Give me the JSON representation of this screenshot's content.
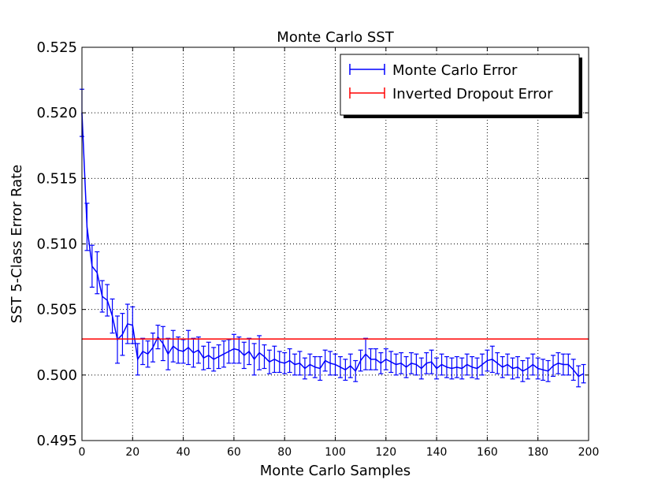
{
  "chart_data": {
    "type": "line",
    "title": "Monte Carlo SST",
    "xlabel": "Monte Carlo Samples",
    "ylabel": "SST 5-Class Error Rate",
    "xlim": [
      0,
      200
    ],
    "ylim": [
      0.495,
      0.525
    ],
    "grid": true,
    "legend_position": "top-right",
    "x_ticks": [
      0,
      20,
      40,
      60,
      80,
      100,
      120,
      140,
      160,
      180,
      200
    ],
    "x_tick_labels": [
      "0",
      "20",
      "40",
      "60",
      "80",
      "100",
      "120",
      "140",
      "160",
      "180",
      "200"
    ],
    "y_ticks": [
      0.495,
      0.5,
      0.505,
      0.51,
      0.515,
      0.52,
      0.525
    ],
    "y_tick_labels": [
      "0.495",
      "0.500",
      "0.505",
      "0.510",
      "0.515",
      "0.520",
      "0.525"
    ],
    "series": [
      {
        "name": "Monte Carlo Error",
        "color": "#0000ff",
        "errorbars": true,
        "x": [
          0,
          2,
          4,
          6,
          8,
          10,
          12,
          14,
          16,
          18,
          20,
          22,
          24,
          26,
          28,
          30,
          32,
          34,
          36,
          38,
          40,
          42,
          44,
          46,
          48,
          50,
          52,
          54,
          56,
          58,
          60,
          62,
          64,
          66,
          68,
          70,
          72,
          74,
          76,
          78,
          80,
          82,
          84,
          86,
          88,
          90,
          92,
          94,
          96,
          98,
          100,
          102,
          104,
          106,
          108,
          110,
          112,
          114,
          116,
          118,
          120,
          122,
          124,
          126,
          128,
          130,
          132,
          134,
          136,
          138,
          140,
          142,
          144,
          146,
          148,
          150,
          152,
          154,
          156,
          158,
          160,
          162,
          164,
          166,
          168,
          170,
          172,
          174,
          176,
          178,
          180,
          182,
          184,
          186,
          188,
          190,
          192,
          194,
          196,
          198
        ],
        "values": [
          0.52,
          0.5113,
          0.5083,
          0.5078,
          0.506,
          0.5057,
          0.5045,
          0.5027,
          0.5031,
          0.5039,
          0.5038,
          0.5012,
          0.5018,
          0.5016,
          0.5021,
          0.5029,
          0.5024,
          0.5016,
          0.5022,
          0.5019,
          0.5018,
          0.5021,
          0.5017,
          0.5019,
          0.5013,
          0.5015,
          0.5012,
          0.5014,
          0.5016,
          0.5018,
          0.502,
          0.5019,
          0.5015,
          0.5018,
          0.5012,
          0.5017,
          0.5014,
          0.501,
          0.5012,
          0.501,
          0.5009,
          0.5011,
          0.5008,
          0.5009,
          0.5005,
          0.5008,
          0.5006,
          0.5005,
          0.5011,
          0.5009,
          0.5008,
          0.5006,
          0.5004,
          0.5007,
          0.5003,
          0.5011,
          0.5016,
          0.5012,
          0.5012,
          0.5009,
          0.5012,
          0.501,
          0.5008,
          0.5009,
          0.5006,
          0.5009,
          0.5008,
          0.5005,
          0.5009,
          0.501,
          0.5005,
          0.5008,
          0.5006,
          0.5005,
          0.5006,
          0.5005,
          0.5008,
          0.5006,
          0.5005,
          0.5008,
          0.5011,
          0.5012,
          0.5009,
          0.5006,
          0.5008,
          0.5005,
          0.5006,
          0.5003,
          0.5005,
          0.5008,
          0.5005,
          0.5004,
          0.5003,
          0.5007,
          0.5009,
          0.5008,
          0.5008,
          0.5004,
          0.4999,
          0.5001
        ],
        "errors": [
          0.0018,
          0.0018,
          0.0016,
          0.0016,
          0.0012,
          0.0012,
          0.0013,
          0.0018,
          0.0016,
          0.0015,
          0.0014,
          0.0012,
          0.001,
          0.001,
          0.0011,
          0.0009,
          0.0013,
          0.0012,
          0.0012,
          0.001,
          0.0009,
          0.0013,
          0.0011,
          0.001,
          0.0009,
          0.001,
          0.0009,
          0.0009,
          0.001,
          0.0009,
          0.0011,
          0.001,
          0.001,
          0.001,
          0.0012,
          0.0013,
          0.0009,
          0.0009,
          0.001,
          0.0008,
          0.0008,
          0.0009,
          0.0008,
          0.0009,
          0.0008,
          0.0008,
          0.0008,
          0.0009,
          0.0008,
          0.0009,
          0.0008,
          0.0008,
          0.0008,
          0.0009,
          0.0008,
          0.0008,
          0.0012,
          0.0008,
          0.0008,
          0.0008,
          0.0008,
          0.0008,
          0.0008,
          0.0008,
          0.0008,
          0.0008,
          0.0008,
          0.0008,
          0.0008,
          0.0009,
          0.0008,
          0.0008,
          0.0008,
          0.0008,
          0.0008,
          0.0008,
          0.0008,
          0.0008,
          0.0008,
          0.0008,
          0.0008,
          0.001,
          0.0008,
          0.0008,
          0.0008,
          0.0008,
          0.0008,
          0.0008,
          0.0008,
          0.0008,
          0.0008,
          0.0008,
          0.0008,
          0.0008,
          0.0008,
          0.0008,
          0.0008,
          0.0008,
          0.0008,
          0.0007
        ]
      },
      {
        "name": "Inverted Dropout Error",
        "color": "#ff0000",
        "errorbars": true,
        "x": [
          0,
          200
        ],
        "values": [
          0.50275,
          0.50275
        ]
      }
    ]
  }
}
